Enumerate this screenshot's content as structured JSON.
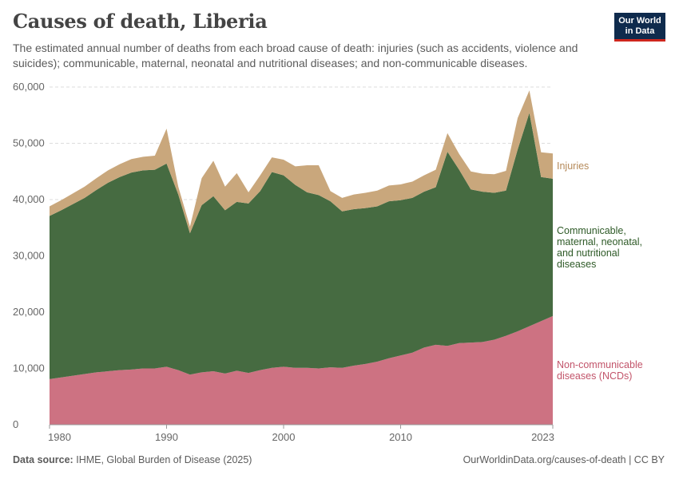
{
  "header": {
    "title": "Causes of death, Liberia",
    "subtitle": "The estimated annual number of deaths from each broad cause of death: injuries (such as accidents, violence and suicides); communicable, maternal, neonatal and nutritional diseases; and non-communicable diseases."
  },
  "logo": {
    "line1": "Our World",
    "line2": "in Data"
  },
  "footer": {
    "source_label": "Data source:",
    "source_text": "IHME, Global Burden of Disease (2025)",
    "url": "OurWorldinData.org/causes-of-death | CC BY"
  },
  "colors": {
    "injuries": "#c9a77c",
    "communicable": "#466b41",
    "ncd": "#cd7282",
    "injuries_text": "#b58a5a",
    "communicable_text": "#2e5a27",
    "ncd_text": "#c2546a"
  },
  "chart_data": {
    "type": "area",
    "stacked": true,
    "title": "Causes of death, Liberia",
    "x": [
      1980,
      1981,
      1982,
      1983,
      1984,
      1985,
      1986,
      1987,
      1988,
      1989,
      1990,
      1991,
      1992,
      1993,
      1994,
      1995,
      1996,
      1997,
      1998,
      1999,
      2000,
      2001,
      2002,
      2003,
      2004,
      2005,
      2006,
      2007,
      2008,
      2009,
      2010,
      2011,
      2012,
      2013,
      2014,
      2015,
      2016,
      2017,
      2018,
      2019,
      2020,
      2021,
      2022,
      2023
    ],
    "x_ticks": [
      "1980",
      "1990",
      "2000",
      "2010",
      "2023"
    ],
    "x_tick_values": [
      1980,
      1990,
      2000,
      2010,
      2023
    ],
    "y_ticks": [
      "0",
      "10,000",
      "20,000",
      "30,000",
      "40,000",
      "50,000",
      "60,000"
    ],
    "y_tick_values": [
      0,
      10000,
      20000,
      30000,
      40000,
      50000,
      60000
    ],
    "ylim": [
      0,
      60000
    ],
    "xlim": [
      1980,
      2023
    ],
    "grid": true,
    "series": [
      {
        "name": "Non-communicable diseases (NCDs)",
        "legend_lines": [
          "Non-communicable",
          "diseases (NCDs)"
        ],
        "color_key": "ncd",
        "values": [
          8100,
          8400,
          8700,
          9000,
          9300,
          9500,
          9700,
          9800,
          10000,
          10000,
          10300,
          9700,
          8900,
          9300,
          9500,
          9100,
          9600,
          9200,
          9700,
          10100,
          10300,
          10100,
          10100,
          10000,
          10200,
          10100,
          10500,
          10800,
          11200,
          11800,
          12300,
          12800,
          13700,
          14200,
          14000,
          14500,
          14600,
          14700,
          15100,
          15800,
          16600,
          17500,
          18400,
          19300
        ]
      },
      {
        "name": "Communicable, maternal, neonatal, and nutritional diseases",
        "legend_lines": [
          "Communicable,",
          "maternal, neonatal,",
          "and nutritional",
          "diseases"
        ],
        "color_key": "communicable",
        "values": [
          29000,
          29700,
          30500,
          31300,
          32400,
          33500,
          34300,
          35000,
          35200,
          35300,
          36100,
          31200,
          25100,
          29700,
          31100,
          29000,
          30000,
          30100,
          31800,
          34800,
          34000,
          32500,
          31200,
          30800,
          29500,
          27800,
          27800,
          27700,
          27600,
          27900,
          27600,
          27500,
          27700,
          28000,
          34500,
          30800,
          27200,
          26700,
          26100,
          25800,
          32300,
          37900,
          25600,
          24400
        ]
      },
      {
        "name": "Injuries",
        "legend_lines": [
          "Injuries"
        ],
        "color_key": "injuries",
        "values": [
          1700,
          1800,
          1900,
          2000,
          2100,
          2200,
          2300,
          2400,
          2400,
          2500,
          6200,
          1400,
          1200,
          4800,
          6300,
          4200,
          5100,
          2000,
          2800,
          2600,
          2800,
          3300,
          4800,
          5300,
          1800,
          2400,
          2600,
          2700,
          2800,
          2800,
          2800,
          2900,
          2900,
          3100,
          3300,
          2800,
          3200,
          3200,
          3300,
          3500,
          5600,
          4000,
          4400,
          4500
        ]
      }
    ]
  }
}
